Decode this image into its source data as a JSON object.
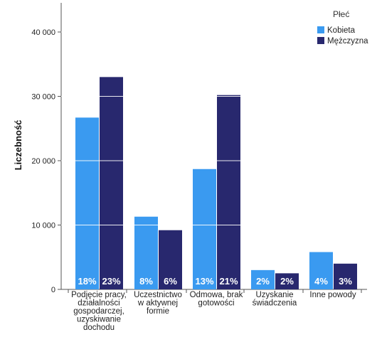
{
  "chart_data": {
    "type": "bar",
    "ylabel": "Liczebność",
    "xlabel": "",
    "ylim": [
      0,
      45000
    ],
    "y_ticks": [
      0,
      10000,
      20000,
      30000,
      40000
    ],
    "y_tick_labels": [
      "0",
      "10 000",
      "20 000",
      "30 000",
      "40 000"
    ],
    "grid": true,
    "legend": {
      "title": "Płeć",
      "placement": "top-right"
    },
    "categories": [
      [
        "Podjęcie pracy,",
        "działalności",
        "gospodarczej,",
        "uzyskiwanie",
        "dochodu"
      ],
      [
        "Uczestnictwo",
        "w aktywnej",
        "formie"
      ],
      [
        "Odmowa, brak",
        "gotowości"
      ],
      [
        "Uzyskanie",
        "świadczenia"
      ],
      [
        "Inne powody"
      ]
    ],
    "series": [
      {
        "name": "Kobieta",
        "color": "#3a9af0",
        "values": [
          26700,
          11300,
          18700,
          3000,
          5800
        ],
        "labels": [
          "18%",
          "8%",
          "13%",
          "2%",
          "4%"
        ]
      },
      {
        "name": "Mężczyzna",
        "color": "#28286e",
        "values": [
          33000,
          9200,
          30200,
          2500,
          4000
        ],
        "labels": [
          "23%",
          "6%",
          "21%",
          "2%",
          "3%"
        ]
      }
    ]
  }
}
